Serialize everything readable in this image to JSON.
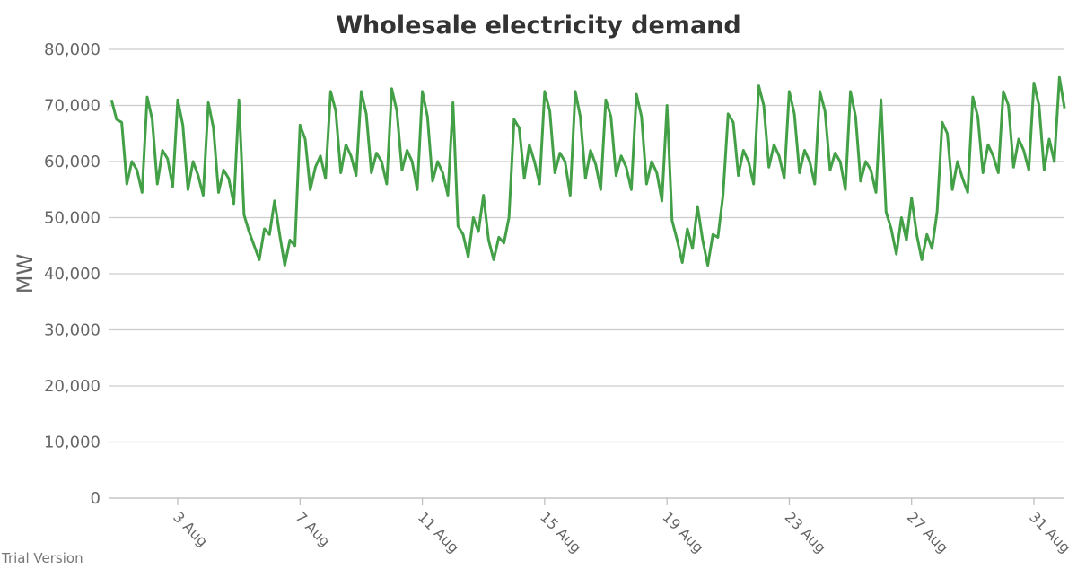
{
  "chart_data": {
    "type": "line",
    "title": "Wholesale electricity demand",
    "xlabel": "",
    "ylabel": "MW",
    "ylim": [
      0,
      80000
    ],
    "yticks": [
      0,
      10000,
      20000,
      30000,
      40000,
      50000,
      60000,
      70000,
      80000
    ],
    "ytick_labels": [
      "0",
      "10,000",
      "20,000",
      "30,000",
      "40,000",
      "50,000",
      "60,000",
      "70,000",
      "80,000"
    ],
    "xticks_day_of_aug": [
      3,
      7,
      11,
      15,
      19,
      23,
      27,
      31
    ],
    "xtick_labels": [
      "3 Aug",
      "7 Aug",
      "11 Aug",
      "15 Aug",
      "19 Aug",
      "23 Aug",
      "27 Aug",
      "31 Aug"
    ],
    "x_start_hours_from_1_aug": -4,
    "interval_hours": 4,
    "grid": true,
    "legend": "none",
    "series": [
      {
        "name": "Demand",
        "color": "#43a047",
        "values": [
          71000,
          67500,
          67000,
          56000,
          60000,
          58500,
          54500,
          71500,
          67500,
          56000,
          62000,
          60500,
          55500,
          71000,
          66500,
          55000,
          60000,
          57500,
          54000,
          70500,
          66000,
          54500,
          58500,
          57000,
          52500,
          71000,
          50500,
          47500,
          45000,
          42500,
          48000,
          47000,
          53000,
          47000,
          41500,
          46000,
          45000,
          66500,
          64000,
          55000,
          59000,
          61000,
          57000,
          72500,
          69000,
          58000,
          63000,
          61000,
          57500,
          72500,
          68500,
          58000,
          61500,
          60000,
          56000,
          73000,
          69000,
          58500,
          62000,
          60000,
          55000,
          72500,
          68000,
          56500,
          60000,
          58000,
          54000,
          70500,
          48500,
          47000,
          43000,
          50000,
          47500,
          54000,
          46000,
          42500,
          46500,
          45500,
          50000,
          67500,
          66000,
          57000,
          63000,
          60000,
          56000,
          72500,
          69000,
          58000,
          61500,
          60000,
          54000,
          72500,
          68000,
          57000,
          62000,
          59500,
          55000,
          71000,
          68000,
          57500,
          61000,
          59000,
          55000,
          72000,
          68000,
          56000,
          60000,
          58000,
          53000,
          70000,
          49500,
          46000,
          42000,
          48000,
          44500,
          52000,
          46000,
          41500,
          47000,
          46500,
          54000,
          68500,
          67000,
          57500,
          62000,
          60000,
          56000,
          73500,
          70000,
          59000,
          63000,
          61000,
          57000,
          72500,
          68500,
          58000,
          62000,
          60000,
          56000,
          72500,
          69000,
          58500,
          61500,
          60000,
          55000,
          72500,
          68000,
          56500,
          60000,
          58500,
          54500,
          71000,
          51000,
          48000,
          43500,
          50000,
          46000,
          53500,
          47000,
          42500,
          47000,
          44500,
          51000,
          67000,
          65000,
          55000,
          60000,
          57000,
          54500,
          71500,
          68000,
          58000,
          63000,
          61000,
          58000,
          72500,
          70000,
          59000,
          64000,
          62000,
          58500,
          74000,
          70000,
          58500,
          64000,
          60000,
          75000,
          69500
        ]
      }
    ]
  },
  "watermark": "Trial Version"
}
